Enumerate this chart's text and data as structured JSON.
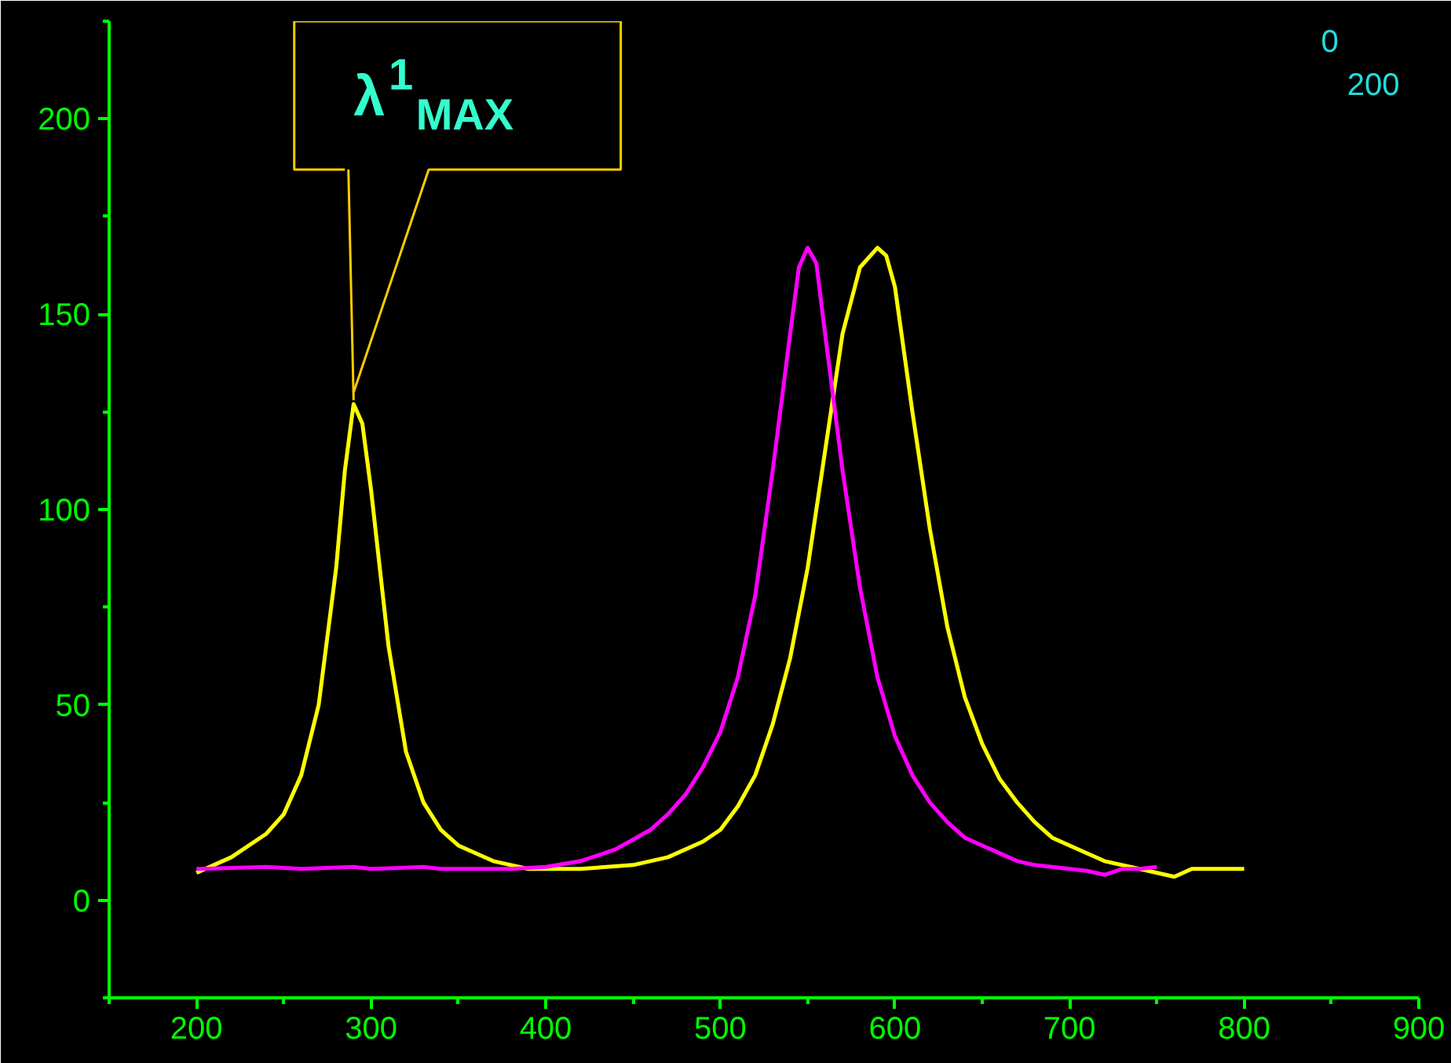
{
  "chart_data": {
    "type": "line",
    "x": [
      200,
      220,
      240,
      250,
      260,
      270,
      280,
      285,
      290,
      295,
      300,
      310,
      320,
      330,
      340,
      350,
      370,
      390,
      420,
      450,
      470,
      490,
      500,
      510,
      520,
      530,
      540,
      550,
      560,
      570,
      580,
      590,
      595,
      600,
      610,
      620,
      630,
      640,
      650,
      660,
      670,
      680,
      690,
      700,
      720,
      740,
      760,
      770,
      780,
      790,
      800
    ],
    "series": [
      {
        "color": "#ffff00",
        "values": [
          7,
          11,
          17,
          22,
          32,
          50,
          85,
          110,
          127,
          122,
          105,
          65,
          38,
          25,
          18,
          14,
          10,
          8,
          8,
          9,
          11,
          15,
          18,
          24,
          32,
          45,
          62,
          85,
          115,
          145,
          162,
          167,
          165,
          157,
          125,
          95,
          70,
          52,
          40,
          31,
          25,
          20,
          16,
          14,
          10,
          8,
          6,
          8,
          8,
          8,
          8
        ]
      },
      {
        "color": "#ff00ff",
        "x": [
          200,
          240,
          260,
          290,
          300,
          330,
          340,
          380,
          400,
          420,
          440,
          460,
          470,
          480,
          490,
          500,
          510,
          520,
          530,
          540,
          545,
          550,
          555,
          560,
          570,
          580,
          590,
          600,
          610,
          620,
          630,
          640,
          650,
          660,
          670,
          680,
          700,
          710,
          720,
          730,
          740,
          750
        ],
        "values": [
          8,
          8.5,
          8,
          8.5,
          8,
          8.5,
          8,
          8,
          8.5,
          10,
          13,
          18,
          22,
          27,
          34,
          43,
          57,
          78,
          110,
          145,
          162,
          167,
          163,
          145,
          110,
          80,
          57,
          42,
          32,
          25,
          20,
          16,
          14,
          12,
          10,
          9,
          8,
          7.5,
          6.5,
          8,
          8,
          8.5
        ]
      }
    ],
    "xlim": [
      150,
      900
    ],
    "ylim": [
      -25,
      225
    ],
    "xticks": [
      {
        "value": 150,
        "label": null
      },
      200,
      {
        "value": 250,
        "label": null
      },
      300,
      {
        "value": 350,
        "label": null
      },
      400,
      {
        "value": 450,
        "label": null
      },
      500,
      {
        "value": 550,
        "label": null
      },
      600,
      {
        "value": 650,
        "label": null
      },
      700,
      {
        "value": 750,
        "label": null
      },
      800,
      {
        "value": 850,
        "label": null
      },
      900
    ],
    "yticks": [
      {
        "value": -25,
        "label": null
      },
      0,
      {
        "value": 25,
        "label": null
      },
      50,
      {
        "value": 75,
        "label": null
      },
      100,
      {
        "value": 125,
        "label": null
      },
      150,
      {
        "value": 175,
        "label": null
      },
      200,
      {
        "value": 225,
        "label": null
      }
    ],
    "annotations": [
      {
        "text": "λ$^{1}$$_{MAX}$",
        "x": 290,
        "y": 127
      },
      "0",
      "200"
    ]
  }
}
